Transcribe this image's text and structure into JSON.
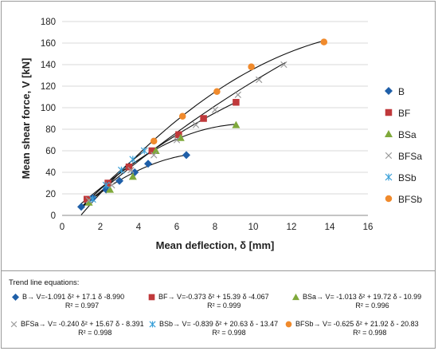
{
  "chart_data": {
    "type": "scatter",
    "xlabel": "Mean deflection, δ  [mm]",
    "ylabel": "Mean shear force, V [kN]",
    "xlim": [
      0,
      16
    ],
    "ylim": [
      0,
      180
    ],
    "xticks": [
      "0",
      "2",
      "4",
      "6",
      "8",
      "10",
      "12",
      "14",
      "16"
    ],
    "yticks": [
      "0",
      "20",
      "40",
      "60",
      "80",
      "100",
      "120",
      "140",
      "160",
      "180"
    ],
    "grid": true,
    "legend_position": "right",
    "series": [
      {
        "name": "B",
        "marker": "diamond",
        "color": "#1f5fa8",
        "points": [
          [
            1.0,
            8
          ],
          [
            1.6,
            16
          ],
          [
            2.3,
            24
          ],
          [
            3.0,
            32
          ],
          [
            3.8,
            40
          ],
          [
            4.5,
            48
          ],
          [
            6.5,
            56
          ]
        ],
        "trend": {
          "a": -1.091,
          "b": 17.1,
          "c": -8.99,
          "xmax": 6.5
        }
      },
      {
        "name": "BF",
        "marker": "square",
        "color": "#c0393b",
        "points": [
          [
            1.3,
            15
          ],
          [
            2.4,
            30
          ],
          [
            3.5,
            45
          ],
          [
            4.7,
            60
          ],
          [
            6.1,
            75
          ],
          [
            7.4,
            90
          ],
          [
            9.1,
            105
          ]
        ],
        "trend": {
          "a": -0.373,
          "b": 15.39,
          "c": -4.067,
          "xmax": 9.1
        }
      },
      {
        "name": "BSa",
        "marker": "triangle",
        "color": "#7fa93b",
        "points": [
          [
            1.4,
            12
          ],
          [
            2.5,
            24
          ],
          [
            3.7,
            36
          ],
          [
            4.9,
            60
          ],
          [
            6.2,
            72
          ],
          [
            9.1,
            84
          ]
        ],
        "trend": {
          "a": -1.013,
          "b": 19.72,
          "c": -10.99,
          "xmax": 9.1
        }
      },
      {
        "name": "BFSa",
        "marker": "x",
        "color": "#9a9a9a",
        "points": [
          [
            1.4,
            14
          ],
          [
            2.6,
            28
          ],
          [
            3.6,
            42
          ],
          [
            4.8,
            56
          ],
          [
            6.0,
            70
          ],
          [
            7.0,
            84
          ],
          [
            8.0,
            98
          ],
          [
            9.2,
            112
          ],
          [
            10.3,
            126
          ],
          [
            11.6,
            140
          ]
        ],
        "trend": {
          "a": -0.24,
          "b": 15.67,
          "c": -8.391,
          "xmax": 11.7
        }
      },
      {
        "name": "BSb",
        "marker": "star",
        "color": "#3aa0d8",
        "points": [
          [
            1.6,
            15
          ],
          [
            2.3,
            28
          ],
          [
            3.1,
            42
          ],
          [
            3.7,
            52
          ],
          [
            4.3,
            60
          ]
        ],
        "trend": {
          "a": -0.839,
          "b": 20.63,
          "c": -13.47,
          "xmax": 4.3
        }
      },
      {
        "name": "BFSb",
        "marker": "circle",
        "color": "#f08a2c",
        "points": [
          [
            4.8,
            69
          ],
          [
            6.3,
            92
          ],
          [
            8.1,
            115
          ],
          [
            9.9,
            138
          ],
          [
            13.7,
            161
          ]
        ],
        "trend": {
          "a": -0.625,
          "b": 21.92,
          "c": -20.83,
          "xmax": 13.7
        }
      }
    ]
  },
  "equations": {
    "title": "Trend line equations:",
    "items": [
      {
        "series": "B",
        "text": "B→ V=-1.091 δ² + 17.1 δ -8.990",
        "r2": "R² = 0.997"
      },
      {
        "series": "BF",
        "text": "BF→ V=-0.373 δ² + 15.39 δ -4.067",
        "r2": "R² = 0.999"
      },
      {
        "series": "BSa",
        "text": "BSa→ V= -1.013 δ² + 19.72 δ - 10.99",
        "r2": "R² = 0.996"
      },
      {
        "series": "BFSa",
        "text": "BFSa→ V= -0.240 δ² + 15.67 δ - 8.391",
        "r2": "R² = 0.998"
      },
      {
        "series": "BSb",
        "text": "BSb→ V= -0.839 δ² + 20.63 δ - 13.47",
        "r2": "R² = 0.998"
      },
      {
        "series": "BFSb",
        "text": "BFSb→ V= -0.625 δ² + 21.92 δ - 20.83",
        "r2": "R² = 0.998"
      }
    ]
  }
}
